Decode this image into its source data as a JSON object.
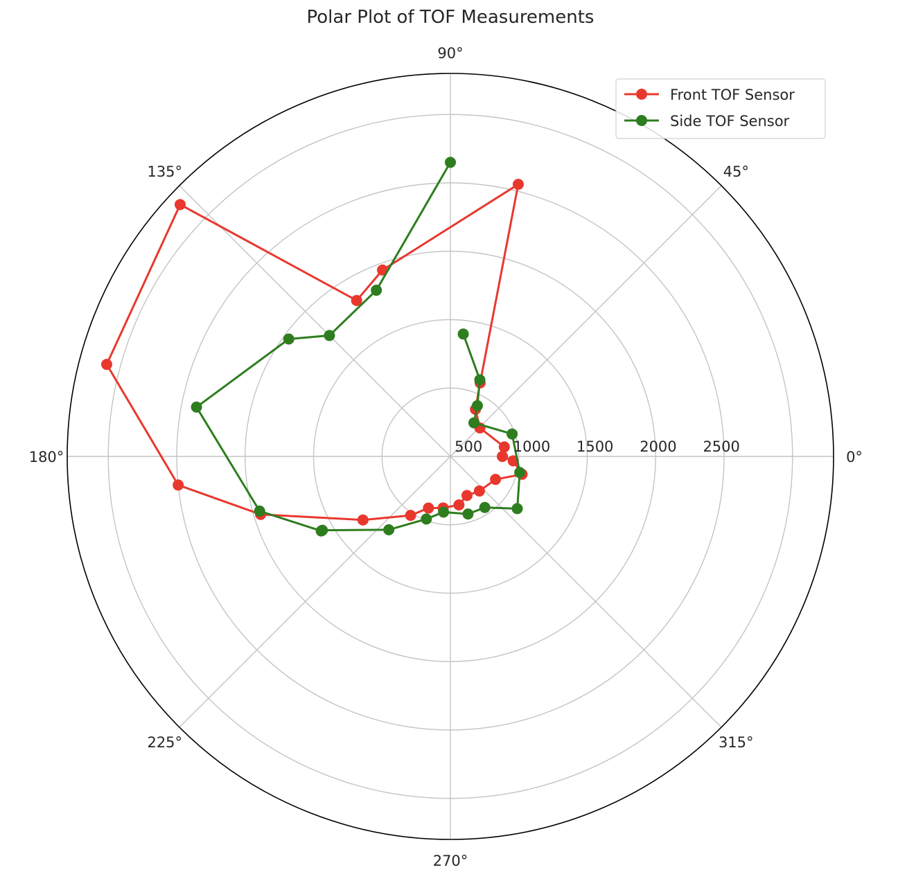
{
  "chart_data": {
    "type": "polar-line",
    "title": "Polar Plot of TOF Measurements",
    "theta_unit": "degrees",
    "theta_ticks": [
      "0°",
      "45°",
      "90°",
      "135°",
      "180°",
      "225°",
      "270°",
      "315°"
    ],
    "theta_tick_values": [
      0,
      45,
      90,
      135,
      180,
      225,
      270,
      315
    ],
    "r_ticks": [
      "500",
      "1000",
      "1500",
      "2000",
      "2500"
    ],
    "r_tick_values": [
      500,
      1000,
      1500,
      2000,
      2500
    ],
    "rlim": [
      0,
      2800
    ],
    "grid": true,
    "legend_position": "top-right",
    "series": [
      {
        "name": "Front TOF Sensor",
        "color": "#e8382e",
        "points": [
          {
            "theta": 0,
            "r": 380
          },
          {
            "theta": -4,
            "r": 460
          },
          {
            "theta": -14,
            "r": 540
          },
          {
            "theta": -27,
            "r": 370
          },
          {
            "theta": -50,
            "r": 330
          },
          {
            "theta": -67,
            "r": 310
          },
          {
            "theta": -80,
            "r": 360
          },
          {
            "theta": -98,
            "r": 380
          },
          {
            "theta": -113,
            "r": 410
          },
          {
            "theta": -124,
            "r": 520
          },
          {
            "theta": -144,
            "r": 790
          },
          {
            "theta": -163,
            "r": 1450
          },
          {
            "theta": -174,
            "r": 2000
          },
          {
            "theta": 165,
            "r": 2600
          },
          {
            "theta": 137,
            "r": 2700
          },
          {
            "theta": 121,
            "r": 1330
          },
          {
            "theta": 110,
            "r": 1450
          },
          {
            "theta": 76,
            "r": 2050
          },
          {
            "theta": 68,
            "r": 580
          },
          {
            "theta": 62,
            "r": 390
          },
          {
            "theta": 44,
            "r": 300
          },
          {
            "theta": 10,
            "r": 400
          },
          {
            "theta": 0,
            "r": 380
          }
        ]
      },
      {
        "name": "Side TOF Sensor",
        "color": "#2e7d1f",
        "points": [
          {
            "theta": 84,
            "r": 900
          },
          {
            "theta": 69,
            "r": 600
          },
          {
            "theta": 62,
            "r": 420
          },
          {
            "theta": 55,
            "r": 300
          },
          {
            "theta": 20,
            "r": 480
          },
          {
            "theta": -13,
            "r": 520
          },
          {
            "theta": -38,
            "r": 620
          },
          {
            "theta": -56,
            "r": 450
          },
          {
            "theta": -73,
            "r": 440
          },
          {
            "theta": -97,
            "r": 410
          },
          {
            "theta": -111,
            "r": 490
          },
          {
            "theta": -130,
            "r": 700
          },
          {
            "theta": -150,
            "r": 1080
          },
          {
            "theta": -150,
            "r": 1090
          },
          {
            "theta": -164,
            "r": 1450
          },
          {
            "theta": 169,
            "r": 1890
          },
          {
            "theta": 144,
            "r": 1460
          },
          {
            "theta": 135,
            "r": 1250
          },
          {
            "theta": 114,
            "r": 1330
          },
          {
            "theta": 90,
            "r": 2150
          }
        ]
      }
    ]
  }
}
